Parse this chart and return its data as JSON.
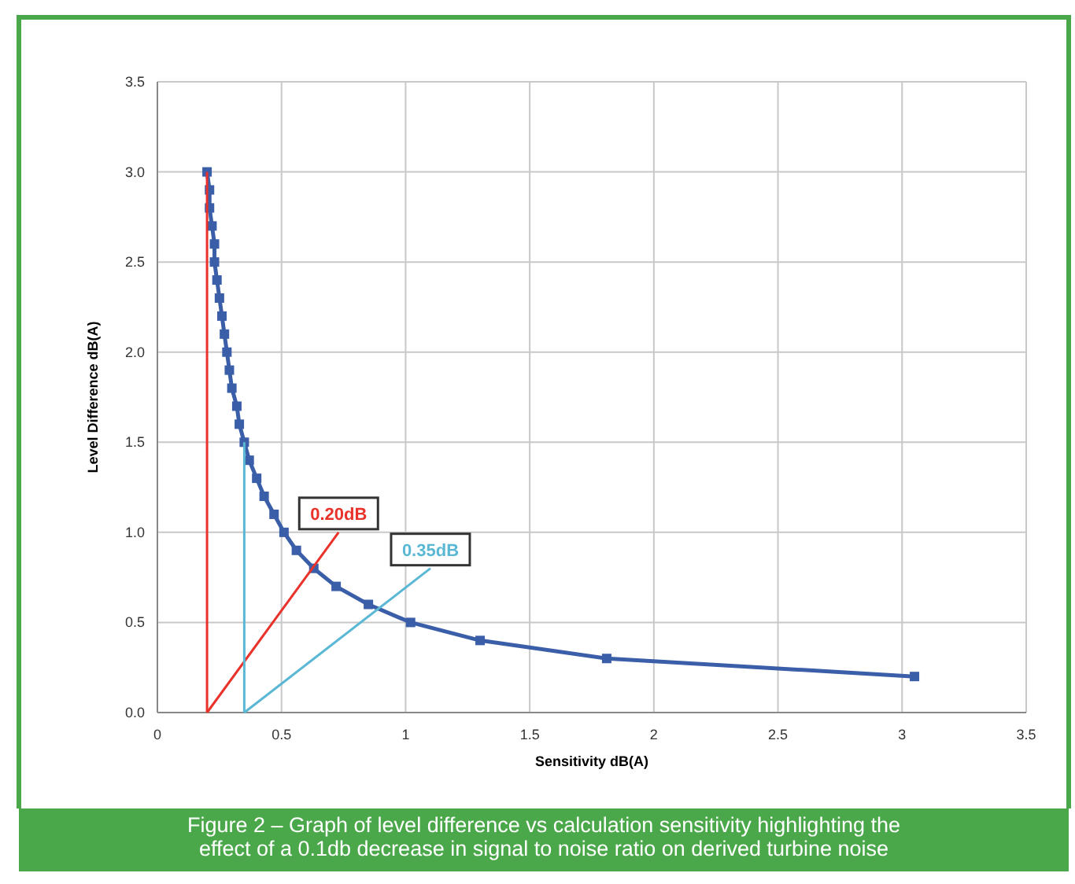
{
  "chart_data": {
    "type": "line",
    "title": "Figure 2 – Graph of level difference vs calculation sensitivity highlighting the effect of a 0.1db decrease in signal to noise ratio on derived turbine noise",
    "xlabel": "Sensitivity dB(A)",
    "ylabel": "Level Difference dB(A)",
    "xlim": [
      0,
      3.5
    ],
    "ylim": [
      0,
      3.5
    ],
    "xticks": [
      0,
      0.5,
      1,
      1.5,
      2,
      2.5,
      3,
      3.5
    ],
    "yticks": [
      {
        "value": 0,
        "label": "0.0"
      },
      {
        "value": 0.5,
        "label": "0.5"
      },
      {
        "value": 1,
        "label": "1.0"
      },
      {
        "value": 1.5,
        "label": "1.5"
      },
      {
        "value": 2,
        "label": "2.0"
      },
      {
        "value": 2.5,
        "label": "2.5"
      },
      {
        "value": 3,
        "label": "3.0"
      },
      {
        "value": 3.5,
        "label": "3.5"
      }
    ],
    "grid": true,
    "series": [
      {
        "color": "#3b5ea8",
        "marker": "square",
        "x": [
          0.2,
          0.21,
          0.21,
          0.22,
          0.23,
          0.23,
          0.24,
          0.25,
          0.26,
          0.27,
          0.28,
          0.29,
          0.3,
          0.32,
          0.33,
          0.35,
          0.37,
          0.4,
          0.43,
          0.47,
          0.51,
          0.56,
          0.63,
          0.72,
          0.85,
          1.02,
          1.3,
          1.81,
          3.05
        ],
        "values": [
          3.0,
          2.9,
          2.8,
          2.7,
          2.6,
          2.5,
          2.4,
          2.3,
          2.2,
          2.1,
          2.0,
          1.9,
          1.8,
          1.7,
          1.6,
          1.5,
          1.4,
          1.3,
          1.2,
          1.1,
          1.0,
          0.9,
          0.8,
          0.7,
          0.6,
          0.5,
          0.4,
          0.3,
          0.2
        ]
      },
      {
        "color": "#e8322a",
        "marker": "none",
        "x": [
          0.2,
          0.2
        ],
        "values": [
          0,
          3.0
        ]
      },
      {
        "color": "#e8322a",
        "marker": "none",
        "x": [
          0.2,
          0.73
        ],
        "values": [
          0,
          1.0
        ]
      },
      {
        "color": "#5ab8d4",
        "marker": "none",
        "x": [
          0.35,
          0.35
        ],
        "values": [
          0,
          1.5
        ]
      },
      {
        "color": "#5ab8d4",
        "marker": "none",
        "x": [
          0.35,
          1.1
        ],
        "values": [
          0,
          0.8
        ]
      }
    ],
    "annotations": [
      "0.20dB",
      "0.35dB"
    ]
  }
}
